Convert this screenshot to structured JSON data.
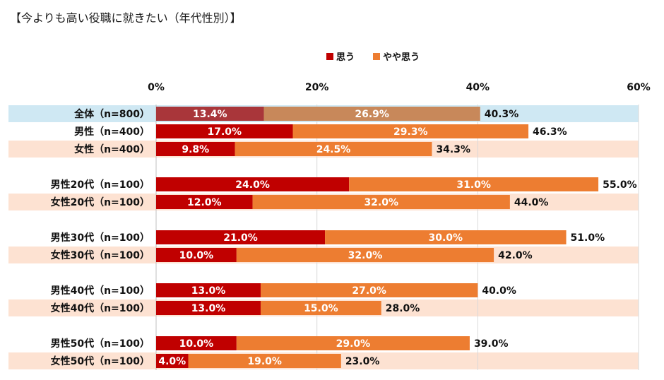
{
  "chart_data": {
    "type": "bar",
    "orientation": "horizontal",
    "stacked": true,
    "title": "【今よりも高い役職に就きたい（年代性別）】",
    "xlim": [
      0,
      60
    ],
    "x_ticks": [
      "0%",
      "20%",
      "40%",
      "60%"
    ],
    "x_tick_values": [
      0,
      20,
      40,
      60
    ],
    "gridlines": true,
    "legend_position": "top",
    "categories": [
      "全体（n=800）",
      "男性（n=400）",
      "女性（n=400）",
      "男性20代（n=100）",
      "女性20代（n=100）",
      "男性30代（n=100）",
      "女性30代（n=100）",
      "男性40代（n=100）",
      "女性40代（n=100）",
      "男性50代（n=100）",
      "女性50代（n=100）"
    ],
    "series": [
      {
        "name": "思う",
        "values": [
          13.4,
          17.0,
          9.8,
          24.0,
          12.0,
          21.0,
          10.0,
          13.0,
          13.0,
          10.0,
          4.0
        ],
        "labels": [
          "13.4%",
          "17.0%",
          "9.8%",
          "24.0%",
          "12.0%",
          "21.0%",
          "10.0%",
          "13.0%",
          "13.0%",
          "10.0%",
          "4.0%"
        ]
      },
      {
        "name": "やや思う",
        "values": [
          26.9,
          29.3,
          24.5,
          31.0,
          32.0,
          30.0,
          32.0,
          27.0,
          15.0,
          29.0,
          19.0
        ],
        "labels": [
          "26.9%",
          "29.3%",
          "24.5%",
          "31.0%",
          "32.0%",
          "30.0%",
          "32.0%",
          "27.0%",
          "15.0%",
          "29.0%",
          "19.0%"
        ]
      }
    ],
    "totals": [
      40.3,
      46.3,
      34.3,
      55.0,
      44.0,
      51.0,
      42.0,
      40.0,
      28.0,
      39.0,
      23.0
    ],
    "total_labels": [
      "40.3%",
      "46.3%",
      "34.3%",
      "55.0%",
      "44.0%",
      "51.0%",
      "42.0%",
      "40.0%",
      "28.0%",
      "39.0%",
      "23.0%"
    ],
    "row_highlight": [
      "overall",
      "male",
      "female",
      "male",
      "female",
      "male",
      "female",
      "male",
      "female",
      "male",
      "female"
    ],
    "colors": {
      "series_1": "#c00000",
      "series_2": "#ed7d31",
      "series_1_overall": "#a9363a",
      "series_2_overall": "#c8885a",
      "row_overall_bg": "#cfe8f3",
      "row_female_bg": "#fde2d2",
      "row_male_bg": "#ffffff",
      "grid": "#d9d9d9",
      "axis": "#bfbfbf"
    }
  }
}
